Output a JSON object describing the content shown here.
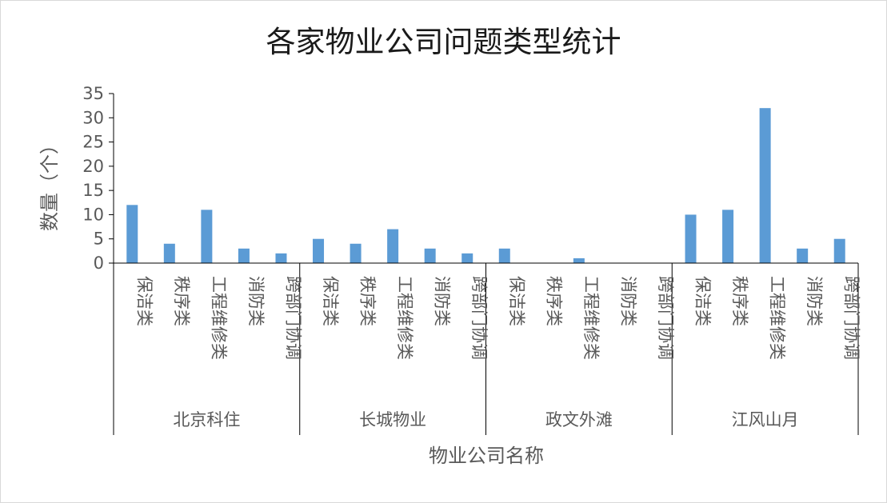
{
  "chart_data": {
    "type": "bar",
    "title": "各家物业公司问题类型统计",
    "xlabel": "物业公司名称",
    "ylabel": "数量（个）",
    "ylim": [
      0,
      35
    ],
    "yticks": [
      "0",
      "5",
      "10",
      "15",
      "20",
      "25",
      "30",
      "35"
    ],
    "grid": false,
    "bar_color": "#5b9bd5",
    "groups": [
      {
        "name": "北京科住",
        "categories": [
          "保洁类",
          "秩序类",
          "工程维修类",
          "消防类",
          "跨部门协调"
        ],
        "values": [
          12,
          4,
          11,
          3,
          2
        ]
      },
      {
        "name": "长城物业",
        "categories": [
          "保洁类",
          "秩序类",
          "工程维修类",
          "消防类",
          "跨部门协调"
        ],
        "values": [
          5,
          4,
          7,
          3,
          2
        ]
      },
      {
        "name": "政文外滩",
        "categories": [
          "保洁类",
          "秩序类",
          "工程维修类",
          "消防类",
          "跨部门协调"
        ],
        "values": [
          3,
          0,
          1,
          0,
          0
        ]
      },
      {
        "name": "江风山月",
        "categories": [
          "保洁类",
          "秩序类",
          "工程维修类",
          "消防类",
          "跨部门协调"
        ],
        "values": [
          10,
          11,
          32,
          3,
          5
        ]
      }
    ]
  }
}
